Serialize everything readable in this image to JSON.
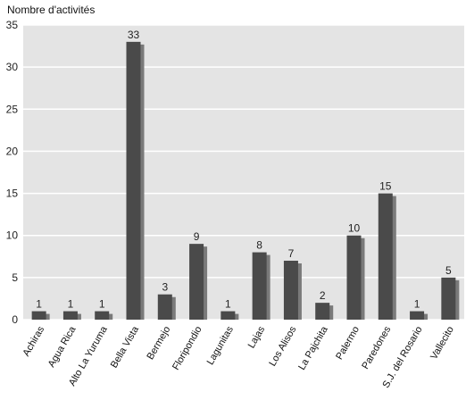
{
  "chart_data": {
    "type": "bar",
    "ylabel": "Nombre d'activités",
    "xlabel": "",
    "ylim": [
      0,
      35
    ],
    "yticks": [
      0,
      5,
      10,
      15,
      20,
      25,
      30,
      35
    ],
    "grid": true,
    "categories": [
      "Achiras",
      "Agua Rica",
      "Alto La Yuruma",
      "Bella Vista",
      "Bermejo",
      "Floripondio",
      "Lagunitas",
      "Lajas",
      "Los Alisos",
      "La Pajchita",
      "Palermo",
      "Paredones",
      "S.J. del Rosario",
      "Vallecito"
    ],
    "values": [
      1,
      1,
      1,
      33,
      3,
      9,
      1,
      8,
      7,
      2,
      10,
      15,
      1,
      5
    ],
    "colors": {
      "bar": "#4a4a4a",
      "shadow": "#7a7a7a",
      "plot_bg": "#e4e4e4",
      "grid": "#ffffff"
    }
  }
}
